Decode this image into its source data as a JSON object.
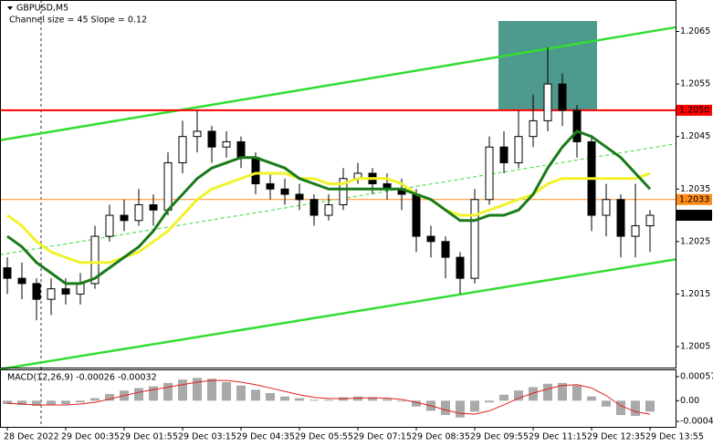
{
  "chart_data": [
    {
      "type": "candlestick",
      "title": "GBPUSD,M5",
      "subtitle": "Channel size = 45 Slope = 0.12",
      "categories": [
        "28 Dec 2022",
        null,
        null,
        null,
        "29 Dec 00:35",
        null,
        null,
        null,
        "29 Dec 01:55",
        null,
        null,
        null,
        "29 Dec 03:15",
        null,
        null,
        null,
        "29 Dec 04:35",
        null,
        null,
        null,
        "29 Dec 05:55",
        null,
        null,
        null,
        "29 Dec 07:15",
        null,
        null,
        null,
        "29 Dec 08:35",
        null,
        null,
        null,
        "29 Dec 09:55",
        null,
        null,
        null,
        "29 Dec 11:15",
        null,
        null,
        null,
        "29 Dec 12:35",
        null,
        null,
        null,
        "29 Dec 13:55"
      ],
      "open": [
        1.202,
        1.2018,
        1.2017,
        1.2014,
        1.2016,
        1.2015,
        1.2017,
        1.2026,
        1.203,
        1.2029,
        1.2032,
        1.2031,
        1.204,
        1.2045,
        1.2046,
        1.2043,
        1.2044,
        1.2041,
        1.2036,
        1.2035,
        1.2034,
        1.2033,
        1.203,
        1.2032,
        1.2037,
        1.2038,
        1.2036,
        1.2035,
        1.2034,
        1.2026,
        1.2025,
        1.2022,
        1.2018,
        1.2033,
        1.2043,
        1.204,
        1.2045,
        1.2048,
        1.2055,
        1.205,
        1.2044,
        1.203,
        1.2033,
        1.2026,
        1.2028
      ],
      "high": [
        1.2022,
        1.2021,
        1.2018,
        1.2018,
        1.2018,
        1.2019,
        1.2028,
        1.2032,
        1.2033,
        1.2035,
        1.2034,
        1.2042,
        1.2048,
        1.205,
        1.2047,
        1.2046,
        1.2045,
        1.2042,
        1.2038,
        1.2037,
        1.2036,
        1.2034,
        1.2034,
        1.2039,
        1.204,
        1.2039,
        1.2038,
        1.2037,
        1.2035,
        1.2028,
        1.2026,
        1.2023,
        1.2035,
        1.2045,
        1.2046,
        1.205,
        1.2053,
        1.2062,
        1.2057,
        1.2051,
        1.2045,
        1.2036,
        1.2034,
        1.2036,
        1.2031
      ],
      "low": [
        1.2015,
        1.2014,
        1.201,
        1.2011,
        1.2013,
        1.2013,
        1.2016,
        1.2025,
        1.2027,
        1.2028,
        1.2028,
        1.203,
        1.2038,
        1.2042,
        1.204,
        1.2041,
        1.2039,
        1.2034,
        1.2033,
        1.2032,
        1.2031,
        1.2028,
        1.2029,
        1.2031,
        1.2036,
        1.2034,
        1.2033,
        1.2031,
        1.2023,
        1.2022,
        1.2018,
        1.2015,
        1.2017,
        1.2032,
        1.2038,
        1.2039,
        1.2043,
        1.2046,
        1.2047,
        1.2041,
        1.2027,
        1.2026,
        1.2022,
        1.2022,
        1.2023
      ],
      "close": [
        1.2018,
        1.2017,
        1.2014,
        1.2016,
        1.2015,
        1.2017,
        1.2026,
        1.203,
        1.2029,
        1.2032,
        1.2031,
        1.204,
        1.2045,
        1.2046,
        1.2043,
        1.2044,
        1.2041,
        1.2036,
        1.2035,
        1.2034,
        1.2033,
        1.203,
        1.2032,
        1.2037,
        1.2038,
        1.2036,
        1.2035,
        1.2034,
        1.2026,
        1.2025,
        1.2022,
        1.2018,
        1.2033,
        1.2043,
        1.204,
        1.2045,
        1.2048,
        1.2055,
        1.205,
        1.2044,
        1.203,
        1.2033,
        1.2026,
        1.2028,
        1.203
      ],
      "series": [
        {
          "color": "#f2f22c",
          "values": [
            1.203,
            1.2028,
            1.2025,
            1.2023,
            1.2022,
            1.2021,
            1.2021,
            1.2021,
            1.2022,
            1.2023,
            1.2025,
            1.2027,
            1.203,
            1.2033,
            1.2035,
            1.2036,
            1.2037,
            1.2038,
            1.2038,
            1.2038,
            1.2037,
            1.2037,
            1.2036,
            1.2036,
            1.2037,
            1.2037,
            1.2037,
            1.2036,
            1.2034,
            1.2033,
            1.2031,
            1.203,
            1.203,
            1.2031,
            1.2032,
            1.2033,
            1.2034,
            1.2036,
            1.2037,
            1.2037,
            1.2037,
            1.2037,
            1.2037,
            1.2037,
            1.2038
          ]
        },
        {
          "color": "#1a7a1a",
          "values": [
            1.2026,
            1.2024,
            1.2021,
            1.2019,
            1.2017,
            1.2017,
            1.2018,
            1.202,
            1.2022,
            1.2024,
            1.2027,
            1.2031,
            1.2034,
            1.2037,
            1.2039,
            1.204,
            1.2041,
            1.2041,
            1.204,
            1.2039,
            1.2037,
            1.2036,
            1.2035,
            1.2035,
            1.2035,
            1.2035,
            1.2035,
            1.2035,
            1.2034,
            1.2033,
            1.2031,
            1.2029,
            1.2029,
            1.203,
            1.203,
            1.2031,
            1.2034,
            1.2039,
            1.2043,
            1.2046,
            1.2045,
            1.2043,
            1.2041,
            1.2038,
            1.2035
          ]
        }
      ],
      "channel": {
        "color": "#33dd33",
        "upper": [
          1.20443,
          1.20658
        ],
        "middle": [
          1.20225,
          1.20436
        ],
        "lower": [
          1.20007,
          1.20216
        ]
      },
      "zone": {
        "start": 34,
        "end": 40,
        "low": 1.205,
        "high": 1.2067,
        "color": "#4e9a8e"
      },
      "levels": [
        {
          "value": 1.205,
          "label": "1.2050",
          "color": "#ff0000"
        },
        {
          "value": 1.2033,
          "label": "1.2033",
          "color": "#ff8c1a"
        },
        {
          "value": 1.203,
          "label": "1.2030",
          "color": "#000000"
        }
      ],
      "ylim": [
        1.2001,
        1.2071
      ],
      "yticks": [
        1.2005,
        1.2015,
        1.2025,
        1.2035,
        1.2045,
        1.2055,
        1.2065
      ]
    },
    {
      "type": "macd",
      "title": "MACD(12,26,9) -0.00026 -0.00032",
      "values": [
        -8e-05,
        -0.0001,
        -0.00012,
        -0.0001,
        -8e-05,
        -4e-05,
        6e-05,
        0.00016,
        0.00024,
        0.0003,
        0.00034,
        0.00042,
        0.0005,
        0.00054,
        0.00052,
        0.00044,
        0.00036,
        0.00026,
        0.00018,
        0.0001,
        6e-05,
        2e-05,
        2e-05,
        8e-05,
        0.0001,
        8e-05,
        4e-05,
        -2e-05,
        -0.00014,
        -0.00024,
        -0.00034,
        -0.0004,
        -0.00026,
        -4e-05,
        0.00014,
        0.00024,
        0.00032,
        0.0004,
        0.00042,
        0.00036,
        0.0001,
        -0.00014,
        -0.00034,
        -0.00036,
        -0.00026
      ],
      "color": "#a9a9a9",
      "signal": [
        -6e-05,
        -8e-05,
        -0.0001,
        -0.0001,
        -0.0001,
        -8e-05,
        -4e-05,
        4e-05,
        0.00012,
        0.0002,
        0.00026,
        0.00032,
        0.00038,
        0.00044,
        0.00048,
        0.00048,
        0.00044,
        0.00038,
        0.0003,
        0.00022,
        0.00014,
        8e-05,
        5e-05,
        5e-05,
        6e-05,
        7e-05,
        6e-05,
        3e-05,
        -4e-05,
        -0.00012,
        -0.00022,
        -0.0003,
        -0.00032,
        -0.00024,
        -0.0001,
        6e-05,
        0.00018,
        0.00028,
        0.00036,
        0.00038,
        0.0003,
        0.00012,
        -0.00012,
        -0.00026,
        -0.00032
      ],
      "signal_color": "#e02020",
      "ylim": [
        -0.00062,
        0.00072
      ],
      "yticks": [
        0.00057,
        {
          "value": 0,
          "label": "0.00"
        },
        -0.00049
      ]
    }
  ]
}
